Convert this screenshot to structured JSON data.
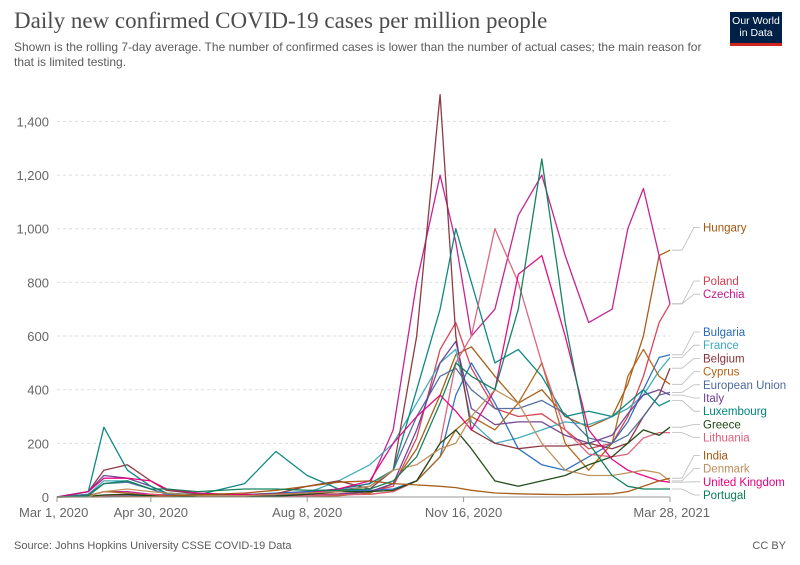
{
  "header": {
    "title": "Daily new confirmed COVID-19 cases per million people",
    "subtitle": "Shown is the rolling 7-day average. The number of confirmed cases is lower than the number of actual cases; the main reason for that is limited testing.",
    "logo_line1": "Our World",
    "logo_line2": "in Data"
  },
  "footer": {
    "source": "Source: Johns Hopkins University CSSE COVID-19 Data",
    "license": "CC BY"
  },
  "chart_data": {
    "type": "line",
    "title": "Daily new confirmed COVID-19 cases per million people",
    "xlabel": "",
    "ylabel": "",
    "x_ticks": [
      "Mar 1, 2020",
      "Apr 30, 2020",
      "Aug 8, 2020",
      "Nov 16, 2020",
      "Mar 28, 2021"
    ],
    "x_tick_days": [
      0,
      60,
      160,
      260,
      392
    ],
    "y_ticks": [
      0,
      200,
      400,
      600,
      800,
      1000,
      1200,
      1400
    ],
    "y_tick_labels": [
      "0",
      "200",
      "400",
      "600",
      "800",
      "1,000",
      "1,200",
      "1,400"
    ],
    "ylim": [
      0,
      1450
    ],
    "x_range_days": [
      0,
      392
    ],
    "grid": "horizontal dashed",
    "legend": "line-end labels",
    "x_sample_days": [
      0,
      20,
      30,
      45,
      60,
      70,
      90,
      120,
      140,
      160,
      180,
      200,
      215,
      230,
      245,
      255,
      265,
      280,
      295,
      310,
      325,
      340,
      355,
      365,
      375,
      385,
      392
    ],
    "series": [
      {
        "name": "Hungary",
        "color": "#a2560f",
        "values": [
          0,
          1,
          3,
          5,
          5,
          3,
          2,
          1,
          2,
          3,
          5,
          15,
          50,
          180,
          380,
          530,
          560,
          450,
          350,
          400,
          300,
          260,
          300,
          420,
          600,
          900,
          920
        ]
      },
      {
        "name": "Poland",
        "color": "#d73c50",
        "values": [
          0,
          2,
          5,
          8,
          10,
          8,
          8,
          9,
          10,
          10,
          12,
          20,
          40,
          220,
          550,
          650,
          480,
          330,
          300,
          310,
          250,
          180,
          200,
          300,
          450,
          650,
          720
        ]
      },
      {
        "name": "Czechia",
        "color": "#c2188d",
        "values": [
          0,
          5,
          20,
          20,
          10,
          5,
          4,
          10,
          12,
          20,
          30,
          50,
          250,
          800,
          1200,
          950,
          600,
          700,
          1050,
          1200,
          900,
          650,
          700,
          1000,
          1150,
          900,
          720
        ]
      },
      {
        "name": "France",
        "color": "#38aaba",
        "values": [
          0,
          10,
          60,
          60,
          30,
          10,
          5,
          5,
          8,
          15,
          60,
          120,
          200,
          350,
          500,
          550,
          280,
          200,
          220,
          250,
          280,
          270,
          300,
          330,
          380,
          470,
          520
        ]
      },
      {
        "name": "Bulgaria",
        "color": "#286bbb",
        "values": [
          0,
          1,
          3,
          5,
          5,
          3,
          3,
          8,
          15,
          20,
          25,
          25,
          30,
          60,
          150,
          380,
          500,
          350,
          180,
          120,
          100,
          150,
          200,
          280,
          400,
          520,
          530
        ]
      },
      {
        "name": "Belgium",
        "color": "#883039",
        "values": [
          0,
          20,
          100,
          120,
          60,
          25,
          12,
          8,
          12,
          40,
          60,
          30,
          100,
          600,
          1500,
          600,
          250,
          200,
          180,
          190,
          190,
          200,
          180,
          200,
          300,
          380,
          480
        ]
      },
      {
        "name": "Cyprus",
        "color": "#b16214",
        "values": [
          0,
          5,
          20,
          15,
          5,
          2,
          1,
          2,
          3,
          5,
          10,
          10,
          20,
          60,
          150,
          250,
          300,
          250,
          350,
          500,
          200,
          100,
          200,
          450,
          550,
          450,
          420
        ]
      },
      {
        "name": "European Union",
        "color": "#4c6a9c",
        "values": [
          0,
          10,
          50,
          55,
          30,
          10,
          6,
          6,
          8,
          15,
          25,
          40,
          100,
          300,
          450,
          480,
          400,
          330,
          330,
          360,
          310,
          220,
          200,
          230,
          300,
          380,
          390
        ]
      },
      {
        "name": "Italy",
        "color": "#6d3e91",
        "values": [
          0,
          20,
          80,
          70,
          40,
          15,
          5,
          3,
          4,
          5,
          10,
          20,
          50,
          250,
          500,
          580,
          330,
          270,
          280,
          280,
          230,
          200,
          230,
          310,
          380,
          400,
          380
        ]
      },
      {
        "name": "Luxembourg",
        "color": "#00847e",
        "values": [
          0,
          20,
          260,
          100,
          40,
          15,
          8,
          50,
          170,
          80,
          30,
          50,
          100,
          400,
          700,
          1000,
          800,
          500,
          550,
          450,
          300,
          320,
          300,
          350,
          400,
          340,
          360
        ]
      },
      {
        "name": "Lithuania",
        "color": "#dc5e78",
        "values": [
          0,
          1,
          5,
          8,
          10,
          5,
          3,
          2,
          3,
          5,
          8,
          10,
          20,
          60,
          200,
          500,
          600,
          1000,
          800,
          500,
          250,
          160,
          150,
          160,
          220,
          240,
          240
        ]
      },
      {
        "name": "Greece",
        "color": "#18470f",
        "values": [
          0,
          2,
          8,
          10,
          5,
          2,
          1,
          2,
          3,
          10,
          20,
          20,
          25,
          60,
          200,
          250,
          180,
          60,
          40,
          60,
          80,
          120,
          150,
          200,
          250,
          230,
          260
        ]
      },
      {
        "name": "United Kingdom",
        "color": "#e6007e",
        "values": [
          0,
          20,
          70,
          70,
          60,
          30,
          15,
          8,
          10,
          15,
          30,
          60,
          200,
          300,
          380,
          320,
          250,
          400,
          830,
          900,
          600,
          250,
          140,
          100,
          80,
          60,
          55
        ]
      },
      {
        "name": "Denmark",
        "color": "#bc8e5a",
        "values": [
          0,
          2,
          20,
          30,
          20,
          15,
          5,
          5,
          10,
          15,
          20,
          40,
          100,
          120,
          180,
          200,
          300,
          400,
          350,
          200,
          100,
          80,
          80,
          90,
          100,
          90,
          60
        ]
      },
      {
        "name": "India",
        "color": "#a2560f",
        "values": [
          0,
          0,
          0,
          1,
          2,
          4,
          8,
          15,
          25,
          40,
          55,
          60,
          50,
          45,
          40,
          35,
          25,
          15,
          12,
          10,
          9,
          10,
          12,
          20,
          40,
          60,
          70
        ]
      },
      {
        "name": "Portugal",
        "color": "#0a7d55",
        "values": [
          0,
          5,
          50,
          60,
          30,
          30,
          20,
          30,
          30,
          25,
          25,
          30,
          60,
          150,
          350,
          500,
          450,
          400,
          700,
          1260,
          650,
          200,
          80,
          40,
          30,
          30,
          30
        ]
      }
    ]
  }
}
